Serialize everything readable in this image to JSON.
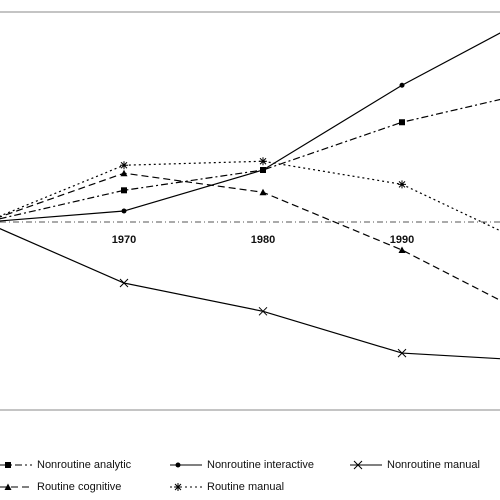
{
  "chart_data": {
    "type": "line",
    "categories": [
      null,
      "1970",
      "1980",
      "1990",
      null
    ],
    "ylim": [
      -47.2,
      52.8
    ],
    "series": [
      {
        "name": "Nonroutine analytic",
        "color": "#000000",
        "marker": "square",
        "dash": "dashdot",
        "values": [
          0,
          8.0,
          13.1,
          25.1,
          33.2
        ]
      },
      {
        "name": "Nonroutine interactive",
        "color": "#000000",
        "marker": "dot",
        "dash": "solid",
        "values": [
          0,
          2.8,
          13.1,
          34.4,
          53.0
        ]
      },
      {
        "name": "Nonroutine manual",
        "color": "#000000",
        "marker": "cross",
        "dash": "solid",
        "values": [
          0,
          -15.3,
          -22.4,
          -32.9,
          -34.9
        ]
      },
      {
        "name": "Routine cognitive",
        "color": "#000000",
        "marker": "triangle",
        "dash": "dashed",
        "values": [
          0,
          12.3,
          7.5,
          -7.0,
          -24.9
        ]
      },
      {
        "name": "Routine manual",
        "color": "#000000",
        "marker": "asterisk",
        "dash": "dotted",
        "values": [
          0,
          14.3,
          15.3,
          9.5,
          -7.0
        ]
      }
    ]
  }
}
